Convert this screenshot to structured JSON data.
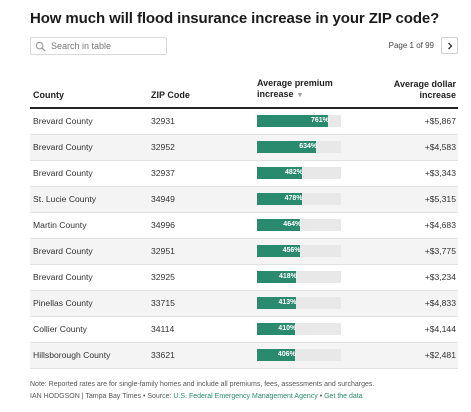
{
  "title": "How much will flood insurance increase in your ZIP code?",
  "search": {
    "placeholder": "Search in table",
    "icon": "search-icon"
  },
  "pager": {
    "label": "Page 1 of 99",
    "next_icon": "chevron-right-icon"
  },
  "table": {
    "headers": {
      "county": "County",
      "zip": "ZIP Code",
      "premium_line1": "Average premium",
      "premium_line2": "increase",
      "dollar_line1": "Average dollar",
      "dollar_line2": "increase"
    },
    "bar_max_percent": 900,
    "rows": [
      {
        "county": "Brevard County",
        "zip": "32931",
        "premium": "761%",
        "premium_value": 761,
        "dollar": "+$5,867"
      },
      {
        "county": "Brevard County",
        "zip": "32952",
        "premium": "634%",
        "premium_value": 634,
        "dollar": "+$4,583"
      },
      {
        "county": "Brevard County",
        "zip": "32937",
        "premium": "482%",
        "premium_value": 482,
        "dollar": "+$3,343"
      },
      {
        "county": "St. Lucie County",
        "zip": "34949",
        "premium": "478%",
        "premium_value": 478,
        "dollar": "+$5,315"
      },
      {
        "county": "Martin County",
        "zip": "34996",
        "premium": "464%",
        "premium_value": 464,
        "dollar": "+$4,683"
      },
      {
        "county": "Brevard County",
        "zip": "32951",
        "premium": "456%",
        "premium_value": 456,
        "dollar": "+$3,775"
      },
      {
        "county": "Brevard County",
        "zip": "32925",
        "premium": "418%",
        "premium_value": 418,
        "dollar": "+$3,234"
      },
      {
        "county": "Pinellas County",
        "zip": "33715",
        "premium": "413%",
        "premium_value": 413,
        "dollar": "+$4,833"
      },
      {
        "county": "Collier County",
        "zip": "34114",
        "premium": "410%",
        "premium_value": 410,
        "dollar": "+$4,144"
      },
      {
        "county": "Hillsborough County",
        "zip": "33621",
        "premium": "406%",
        "premium_value": 406,
        "dollar": "+$2,481"
      }
    ]
  },
  "footer": {
    "note": "Note: Reported rates are for single-family homes and include all premiums, fees, assessments and surcharges.",
    "credit_prefix": "IAN HODGSON | Tampa Bay Times • Source: ",
    "source_link": "U.S. Federal Emergency Management Agency",
    "separator": " • ",
    "data_link": "Get the data"
  },
  "colors": {
    "bar": "#2a8a6e",
    "track": "#e8e8e8",
    "link": "#2a8a6e"
  }
}
